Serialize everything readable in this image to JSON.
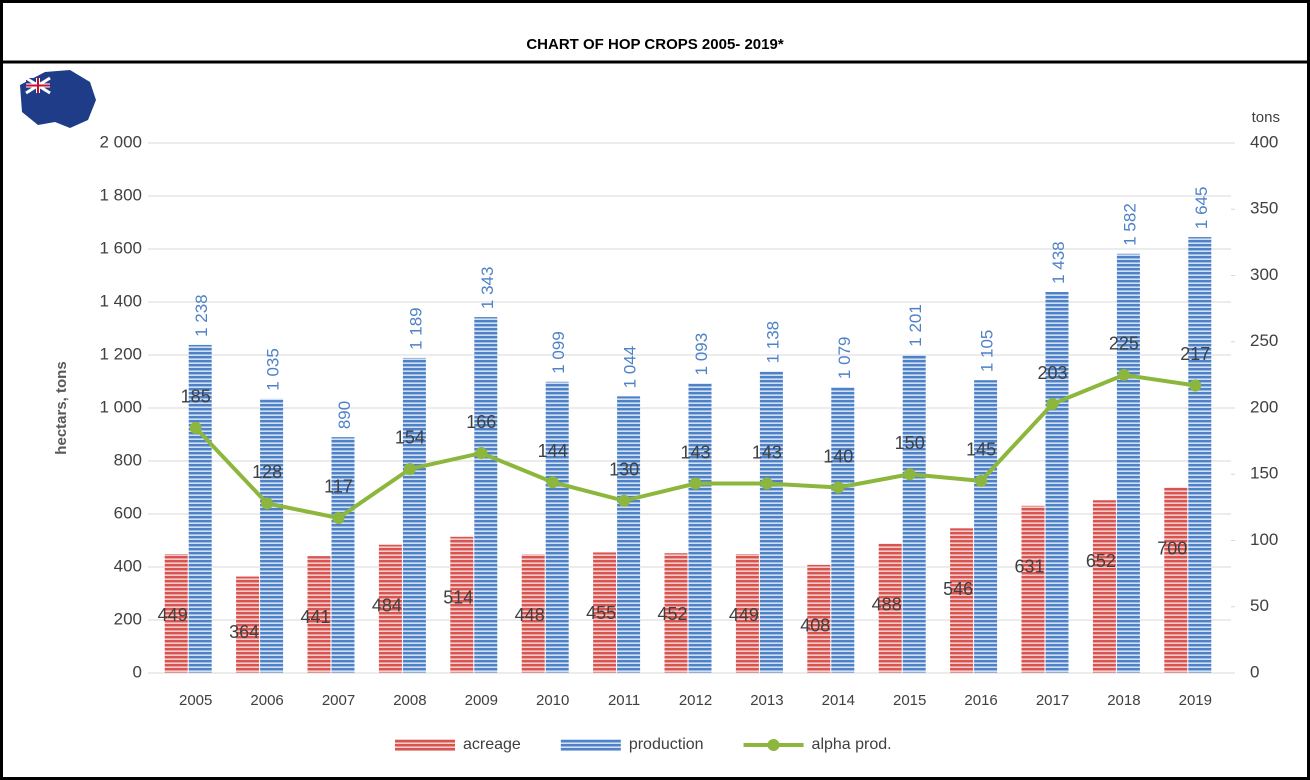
{
  "chart_data": {
    "type": "bar",
    "title": "CHART OF HOP CROPS 2005- 2019*",
    "y_label": "hectars, tons",
    "y2_label": "tons",
    "categories": [
      "2005",
      "2006",
      "2007",
      "2008",
      "2009",
      "2010",
      "2011",
      "2012",
      "2013",
      "2014",
      "2015",
      "2016",
      "2017",
      "2018",
      "2019"
    ],
    "series": [
      {
        "name": "acreage",
        "type": "bar",
        "color": "#e06666",
        "values": [
          449,
          364,
          441,
          484,
          514,
          448,
          455,
          452,
          449,
          408,
          488,
          546,
          631,
          652,
          700
        ]
      },
      {
        "name": "production",
        "type": "bar",
        "color": "#4f81c7",
        "values": [
          1238,
          1035,
          890,
          1189,
          1343,
          1099,
          1044,
          1093,
          1138,
          1079,
          1201,
          1105,
          1438,
          1582,
          1645
        ],
        "value_labels": [
          "1 238",
          "1 035",
          "890",
          "1 189",
          "1 343",
          "1 099",
          "1 044",
          "1 093",
          "1 138",
          "1 079",
          "1 201",
          "1 105",
          "1 438",
          "1 582",
          "1 645"
        ]
      },
      {
        "name": "alpha prod.",
        "type": "line",
        "color": "#8db63c",
        "axis": "y2",
        "values": [
          185,
          128,
          117,
          154,
          166,
          144,
          130,
          143,
          143,
          140,
          150,
          145,
          203,
          225,
          217
        ]
      }
    ],
    "ylim": [
      0,
      2000
    ],
    "yticks": [
      0,
      200,
      400,
      600,
      800,
      {
        "value": 1000,
        "label": "1 000"
      },
      {
        "value": 1200,
        "label": "1 200"
      },
      {
        "value": 1400,
        "label": "1 400"
      },
      {
        "value": 1600,
        "label": "1 600"
      },
      {
        "value": 1800,
        "label": "1 800"
      },
      {
        "value": 2000,
        "label": "2 000"
      }
    ],
    "y2lim": [
      0,
      400
    ],
    "y2ticks": [
      0,
      50,
      100,
      150,
      200,
      250,
      300,
      350,
      400
    ],
    "grid": true,
    "legend": "bottom"
  }
}
